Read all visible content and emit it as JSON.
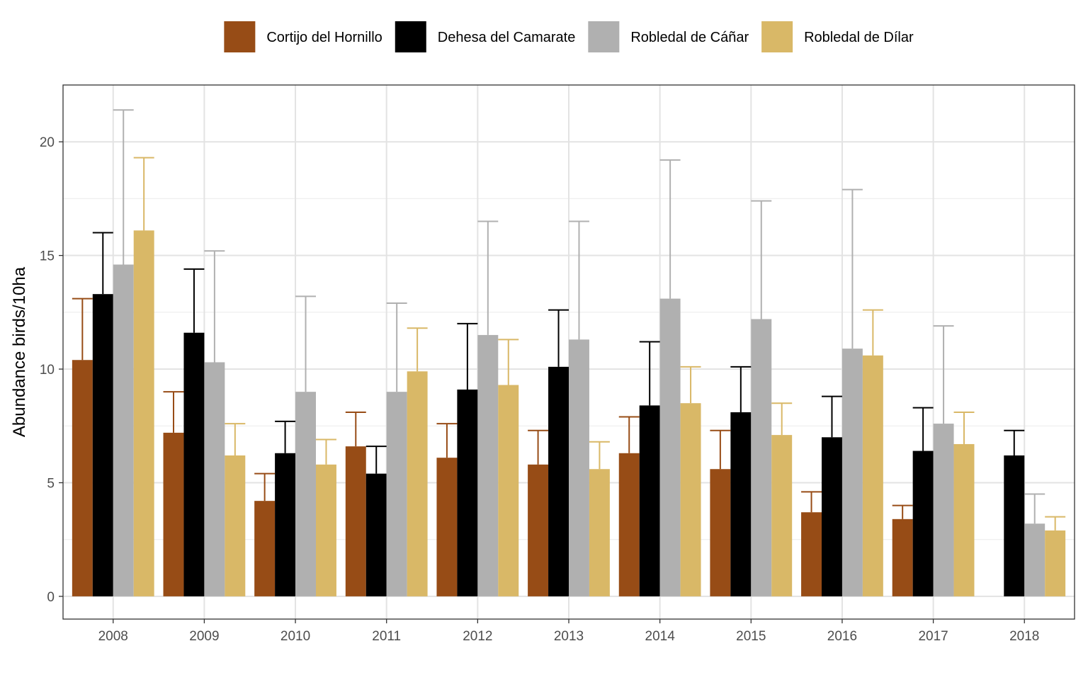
{
  "chart_data": {
    "type": "bar",
    "xlabel": "",
    "ylabel": "Abundance birds/10ha",
    "ylim": [
      -1,
      22.5
    ],
    "yticks": [
      0,
      5,
      10,
      15,
      20
    ],
    "grid": true,
    "legend_position": "top",
    "categories": [
      "2008",
      "2009",
      "2010",
      "2011",
      "2012",
      "2013",
      "2014",
      "2015",
      "2016",
      "2017",
      "2018"
    ],
    "series": [
      {
        "name": "Cortijo del Hornillo",
        "color": "#974C16",
        "values": [
          10.4,
          7.2,
          4.2,
          6.6,
          6.1,
          5.8,
          6.3,
          5.6,
          3.7,
          3.4,
          null
        ],
        "upper": [
          13.1,
          9.0,
          5.4,
          8.1,
          7.6,
          7.3,
          7.9,
          7.3,
          4.6,
          4.0,
          null
        ]
      },
      {
        "name": "Dehesa del Camarate",
        "color": "#000000",
        "values": [
          13.3,
          11.6,
          6.3,
          5.4,
          9.1,
          10.1,
          8.4,
          8.1,
          7.0,
          6.4,
          6.2
        ],
        "upper": [
          16.0,
          14.4,
          7.7,
          6.6,
          12.0,
          12.6,
          11.2,
          10.1,
          8.8,
          8.3,
          7.3
        ]
      },
      {
        "name": "Robledal de Cáñar",
        "color": "#B0B0B0",
        "values": [
          14.6,
          10.3,
          9.0,
          9.0,
          11.5,
          11.3,
          13.1,
          12.2,
          10.9,
          7.6,
          3.2
        ],
        "upper": [
          21.4,
          15.2,
          13.2,
          12.9,
          16.5,
          16.5,
          19.2,
          17.4,
          17.9,
          11.9,
          4.5
        ]
      },
      {
        "name": "Robledal de Dílar",
        "color": "#D9B867",
        "values": [
          16.1,
          6.2,
          5.8,
          9.9,
          9.3,
          5.6,
          8.5,
          7.1,
          10.6,
          6.7,
          2.9
        ],
        "upper": [
          19.3,
          7.6,
          6.9,
          11.8,
          11.3,
          6.8,
          10.1,
          8.5,
          12.6,
          8.1,
          3.5
        ]
      }
    ]
  }
}
